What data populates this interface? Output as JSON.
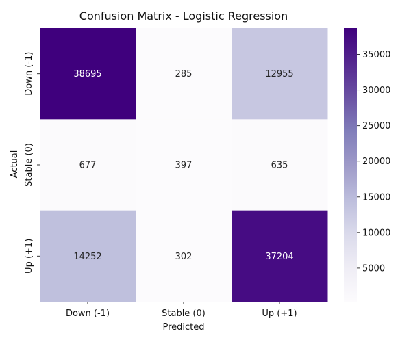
{
  "chart_data": {
    "type": "heatmap",
    "title": "Confusion Matrix - Logistic Regression",
    "xlabel": "Predicted",
    "ylabel": "Actual",
    "x_categories": [
      "Down (-1)",
      "Stable (0)",
      "Up (+1)"
    ],
    "y_categories": [
      "Down (-1)",
      "Stable (0)",
      "Up (+1)"
    ],
    "values": [
      [
        38695,
        285,
        12955
      ],
      [
        677,
        397,
        635
      ],
      [
        14252,
        302,
        37204
      ]
    ],
    "colormap": "Purples",
    "color_range": [
      285,
      38695
    ],
    "colorbar_ticks": [
      5000,
      10000,
      15000,
      20000,
      25000,
      30000,
      35000
    ],
    "colorbar_tick_labels": [
      "5000",
      "10000",
      "15000",
      "20000",
      "25000",
      "30000",
      "35000"
    ]
  }
}
